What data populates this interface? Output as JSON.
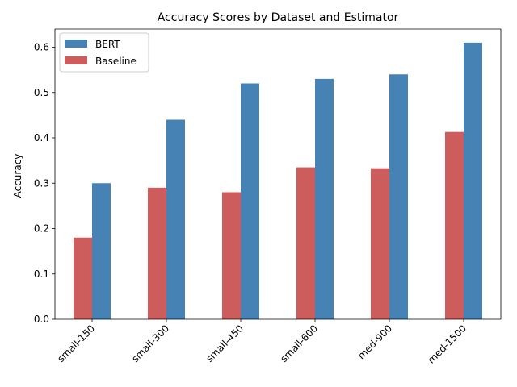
{
  "chart_data": {
    "type": "bar",
    "title": "Accuracy Scores by Dataset and Estimator",
    "xlabel": "",
    "ylabel": "Accuracy",
    "categories": [
      "small-150",
      "small-300",
      "small-450",
      "small-600",
      "med-900",
      "med-1500"
    ],
    "series": [
      {
        "name": "BERT",
        "color": "#4682b4",
        "values": [
          0.3,
          0.44,
          0.52,
          0.53,
          0.54,
          0.61
        ]
      },
      {
        "name": "Baseline",
        "color": "#cd5c5c",
        "values": [
          0.18,
          0.29,
          0.28,
          0.335,
          0.333,
          0.413
        ]
      }
    ],
    "draw_order": [
      "Baseline",
      "BERT"
    ],
    "ylim": [
      0,
      0.64
    ],
    "yticks": [
      "0.0",
      "0.1",
      "0.2",
      "0.3",
      "0.4",
      "0.5",
      "0.6"
    ],
    "grid": false,
    "legend_placement": "top-left",
    "tick_label_rotation_deg": 45
  }
}
